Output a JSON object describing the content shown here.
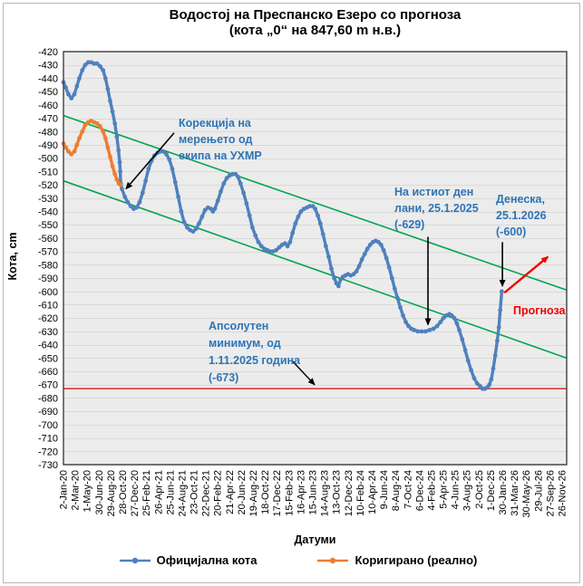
{
  "title": {
    "line1": "Водостој на Преспанско Езеро со прогноза",
    "line2": "(кота „0“ на 847,60 m н.в.)"
  },
  "axes": {
    "x_label": "Датуми",
    "y_label": "Кота, cm"
  },
  "legend": [
    {
      "label": "Официјална кота",
      "color": "#4f81bd"
    },
    {
      "label": "Коригирано (реално)",
      "color": "#ed7d31"
    }
  ],
  "annotations": {
    "correction": {
      "text": "Корекција на\nмерењето од\nекипа на УХМР"
    },
    "last_year": {
      "text": "На истиот ден\nлани, 25.1.2025\n(-629)"
    },
    "today": {
      "text": "Денеска,\n25.1.2026\n(-600)"
    },
    "abs_min": {
      "text": "Апсолутен\nминимум, од\n1.11.2025 година\n(-673)"
    },
    "forecast": {
      "text": "Прогноза"
    }
  },
  "chart_data": {
    "type": "line",
    "title": "Водостој на Преспанско Езеро со прогноза (кота „0“ на 847,60 m н.в.)",
    "xlabel": "Датуми",
    "ylabel": "Кота, cm",
    "ylim": [
      -730,
      -420
    ],
    "y_tick_step": 10,
    "y_ticks": [
      -420,
      -430,
      -440,
      -450,
      -460,
      -470,
      -480,
      -490,
      -500,
      -510,
      -520,
      -530,
      -540,
      -550,
      -560,
      -570,
      -580,
      -590,
      -600,
      -610,
      -620,
      -630,
      -640,
      -650,
      -660,
      -670,
      -680,
      -690,
      -700,
      -710,
      -720,
      -730
    ],
    "x_tick_interval_days": 60,
    "x_tick_labels": [
      "2-Jan-20",
      "2-Mar-20",
      "1-May-20",
      "30-Jun-20",
      "29-Aug-20",
      "28-Oct-20",
      "27-Dec-20",
      "25-Feb-21",
      "26-Apr-21",
      "25-Jun-21",
      "24-Aug-21",
      "23-Oct-21",
      "22-Dec-21",
      "20-Feb-22",
      "21-Apr-22",
      "20-Jun-22",
      "19-Aug-22",
      "18-Oct-22",
      "17-Dec-22",
      "15-Feb-23",
      "16-Apr-23",
      "15-Jun-23",
      "14-Aug-23",
      "13-Oct-23",
      "12-Dec-23",
      "10-Feb-24",
      "10-Apr-24",
      "9-Jun-24",
      "8-Aug-24",
      "7-Oct-24",
      "6-Dec-24",
      "4-Feb-25",
      "5-Apr-25",
      "4-Jun-25",
      "3-Aug-25",
      "2-Oct-25",
      "1-Dec-25",
      "30-Jan-26",
      "31-Mar-26",
      "30-May-26",
      "29-Jul-26",
      "27-Sep-26",
      "26-Nov-26"
    ],
    "grid": true,
    "plot_bg": "#ececec",
    "grid_color": "#d9d9d9",
    "key_points": [
      {
        "label": "На истиот ден лани, 25.1.2025",
        "value": -629
      },
      {
        "label": "Денеска, 25.1.2026",
        "value": -600
      },
      {
        "label": "Апсолутен минимум, 1.11.2025",
        "value": -673
      }
    ],
    "min_line": {
      "value": -673,
      "color": "#e04343"
    },
    "trend_lines": [
      {
        "from": [
          0,
          -468
        ],
        "to": [
          2543,
          -599
        ],
        "color": "#00a550"
      },
      {
        "from": [
          0,
          -517
        ],
        "to": [
          2543,
          -650
        ],
        "color": "#00a550"
      }
    ],
    "arrows": [
      {
        "name": "correction-arrow",
        "from": [
          559,
          -481
        ],
        "to": [
          316,
          -523
        ],
        "color": "#000000",
        "width": 1.6
      },
      {
        "name": "last-year-arrow",
        "from": [
          1842,
          -559
        ],
        "to": [
          1842,
          -625
        ],
        "color": "#000000",
        "width": 1.6
      },
      {
        "name": "today-arrow",
        "from": [
          2218,
          -563
        ],
        "to": [
          2218,
          -596
        ],
        "color": "#000000",
        "width": 1.6
      },
      {
        "name": "abs-min-arrow",
        "from": [
          1155,
          -652
        ],
        "to": [
          1269,
          -670
        ],
        "color": "#000000",
        "width": 1.4
      },
      {
        "name": "forecast-arrow",
        "from": [
          2228,
          -601
        ],
        "to": [
          2448,
          -574
        ],
        "color": "#ee0000",
        "width": 2.4
      }
    ],
    "series": [
      {
        "name": "Официјална кота",
        "color": "#4f81bd",
        "points": [
          [
            0,
            -443
          ],
          [
            12,
            -447
          ],
          [
            25,
            -452
          ],
          [
            40,
            -455
          ],
          [
            55,
            -452
          ],
          [
            68,
            -446
          ],
          [
            80,
            -440
          ],
          [
            95,
            -434
          ],
          [
            110,
            -430
          ],
          [
            125,
            -428
          ],
          [
            140,
            -428
          ],
          [
            155,
            -429
          ],
          [
            170,
            -429
          ],
          [
            185,
            -431
          ],
          [
            200,
            -434
          ],
          [
            212,
            -440
          ],
          [
            224,
            -448
          ],
          [
            236,
            -457
          ],
          [
            248,
            -465
          ],
          [
            260,
            -474
          ],
          [
            270,
            -484
          ],
          [
            278,
            -494
          ],
          [
            284,
            -503
          ],
          [
            287,
            -510
          ],
          [
            289,
            -519
          ],
          [
            295,
            -523
          ],
          [
            310,
            -529
          ],
          [
            325,
            -533
          ],
          [
            340,
            -536
          ],
          [
            355,
            -538
          ],
          [
            370,
            -537
          ],
          [
            385,
            -533
          ],
          [
            400,
            -526
          ],
          [
            415,
            -517
          ],
          [
            430,
            -508
          ],
          [
            445,
            -502
          ],
          [
            460,
            -498
          ],
          [
            475,
            -496
          ],
          [
            490,
            -495
          ],
          [
            505,
            -495
          ],
          [
            520,
            -497
          ],
          [
            535,
            -501
          ],
          [
            550,
            -508
          ],
          [
            565,
            -518
          ],
          [
            580,
            -529
          ],
          [
            595,
            -540
          ],
          [
            610,
            -548
          ],
          [
            625,
            -552
          ],
          [
            640,
            -554
          ],
          [
            655,
            -555
          ],
          [
            670,
            -553
          ],
          [
            685,
            -549
          ],
          [
            700,
            -544
          ],
          [
            715,
            -539
          ],
          [
            730,
            -537
          ],
          [
            745,
            -538
          ],
          [
            755,
            -540
          ],
          [
            765,
            -538
          ],
          [
            780,
            -532
          ],
          [
            795,
            -525
          ],
          [
            810,
            -519
          ],
          [
            825,
            -515
          ],
          [
            840,
            -513
          ],
          [
            855,
            -512
          ],
          [
            870,
            -512
          ],
          [
            882,
            -514
          ],
          [
            895,
            -519
          ],
          [
            910,
            -526
          ],
          [
            925,
            -534
          ],
          [
            940,
            -543
          ],
          [
            955,
            -552
          ],
          [
            970,
            -558
          ],
          [
            985,
            -563
          ],
          [
            1000,
            -566
          ],
          [
            1015,
            -568
          ],
          [
            1030,
            -569
          ],
          [
            1045,
            -570
          ],
          [
            1060,
            -570
          ],
          [
            1075,
            -569
          ],
          [
            1090,
            -567
          ],
          [
            1105,
            -565
          ],
          [
            1120,
            -564
          ],
          [
            1132,
            -566
          ],
          [
            1145,
            -563
          ],
          [
            1158,
            -556
          ],
          [
            1172,
            -549
          ],
          [
            1186,
            -544
          ],
          [
            1200,
            -540
          ],
          [
            1215,
            -538
          ],
          [
            1230,
            -537
          ],
          [
            1245,
            -536
          ],
          [
            1260,
            -536
          ],
          [
            1272,
            -538
          ],
          [
            1285,
            -543
          ],
          [
            1298,
            -549
          ],
          [
            1312,
            -557
          ],
          [
            1326,
            -566
          ],
          [
            1340,
            -574
          ],
          [
            1354,
            -583
          ],
          [
            1368,
            -590
          ],
          [
            1380,
            -594
          ],
          [
            1390,
            -596
          ],
          [
            1400,
            -591
          ],
          [
            1412,
            -589
          ],
          [
            1425,
            -588
          ],
          [
            1438,
            -587
          ],
          [
            1452,
            -588
          ],
          [
            1466,
            -587
          ],
          [
            1480,
            -585
          ],
          [
            1494,
            -581
          ],
          [
            1508,
            -576
          ],
          [
            1522,
            -572
          ],
          [
            1536,
            -568
          ],
          [
            1550,
            -565
          ],
          [
            1564,
            -563
          ],
          [
            1578,
            -562
          ],
          [
            1592,
            -563
          ],
          [
            1605,
            -565
          ],
          [
            1618,
            -569
          ],
          [
            1632,
            -575
          ],
          [
            1646,
            -582
          ],
          [
            1660,
            -590
          ],
          [
            1674,
            -598
          ],
          [
            1688,
            -605
          ],
          [
            1702,
            -612
          ],
          [
            1716,
            -618
          ],
          [
            1730,
            -623
          ],
          [
            1744,
            -626
          ],
          [
            1758,
            -628
          ],
          [
            1772,
            -629
          ],
          [
            1790,
            -630
          ],
          [
            1810,
            -630
          ],
          [
            1830,
            -630
          ],
          [
            1850,
            -629
          ],
          [
            1870,
            -628
          ],
          [
            1888,
            -626
          ],
          [
            1905,
            -623
          ],
          [
            1920,
            -620
          ],
          [
            1935,
            -618
          ],
          [
            1950,
            -617
          ],
          [
            1962,
            -618
          ],
          [
            1975,
            -620
          ],
          [
            1988,
            -624
          ],
          [
            2000,
            -629
          ],
          [
            2015,
            -636
          ],
          [
            2030,
            -644
          ],
          [
            2045,
            -652
          ],
          [
            2060,
            -659
          ],
          [
            2075,
            -665
          ],
          [
            2090,
            -669
          ],
          [
            2105,
            -671
          ],
          [
            2118,
            -673
          ],
          [
            2130,
            -673
          ],
          [
            2142,
            -672
          ],
          [
            2152,
            -670
          ],
          [
            2162,
            -666
          ],
          [
            2172,
            -658
          ],
          [
            2182,
            -648
          ],
          [
            2192,
            -637
          ],
          [
            2200,
            -627
          ],
          [
            2207,
            -614
          ],
          [
            2215,
            -600
          ]
        ]
      },
      {
        "name": "Коригирано (реално)",
        "color": "#ed7d31",
        "points": [
          [
            0,
            -489
          ],
          [
            12,
            -492
          ],
          [
            25,
            -495
          ],
          [
            40,
            -497
          ],
          [
            55,
            -495
          ],
          [
            68,
            -490
          ],
          [
            80,
            -485
          ],
          [
            95,
            -480
          ],
          [
            110,
            -475
          ],
          [
            125,
            -473
          ],
          [
            140,
            -472
          ],
          [
            155,
            -473
          ],
          [
            170,
            -474
          ],
          [
            185,
            -476
          ],
          [
            200,
            -480
          ],
          [
            212,
            -485
          ],
          [
            224,
            -492
          ],
          [
            236,
            -499
          ],
          [
            248,
            -506
          ],
          [
            260,
            -512
          ],
          [
            270,
            -516
          ],
          [
            280,
            -519
          ],
          [
            289,
            -520
          ]
        ]
      }
    ]
  }
}
